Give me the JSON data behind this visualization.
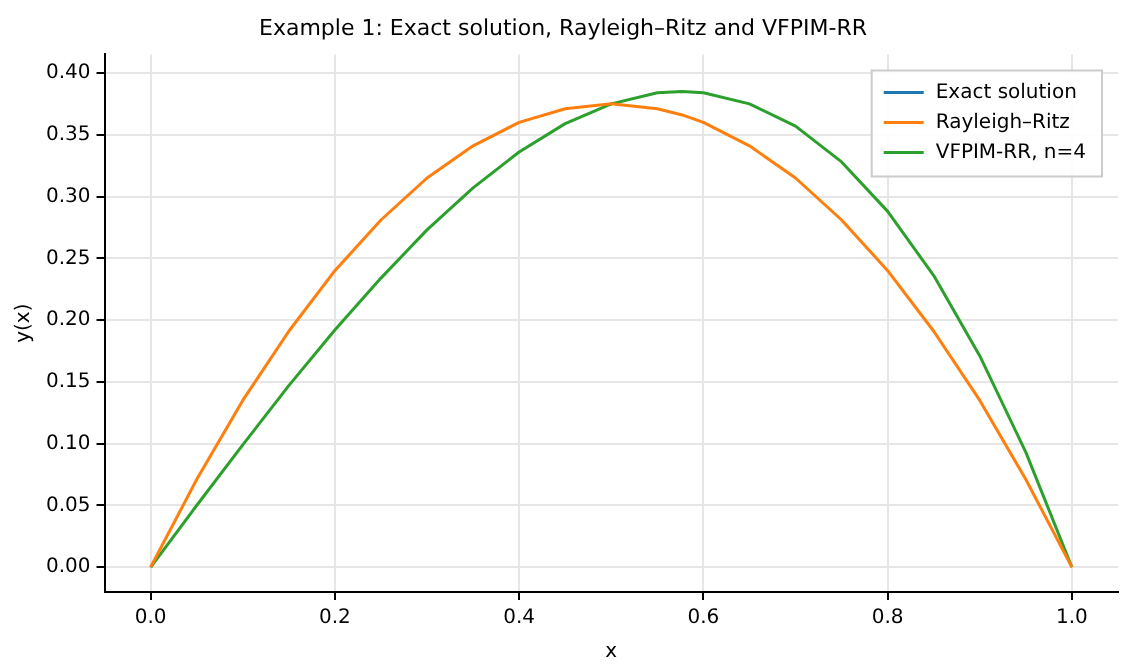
{
  "chart_data": {
    "type": "line",
    "title": "Example 1: Exact solution, Rayleigh–Ritz and VFPIM-RR",
    "xlabel": "x",
    "ylabel": "y(x)",
    "x": [
      0,
      0.05,
      0.1,
      0.15,
      0.2,
      0.25,
      0.3,
      0.35,
      0.4,
      0.45,
      0.5,
      0.55,
      0.577,
      0.6,
      0.65,
      0.7,
      0.75,
      0.8,
      0.85,
      0.9,
      0.95,
      1
    ],
    "series": [
      {
        "name": "Exact solution",
        "color": "#1f77b4",
        "values": [
          null,
          null,
          null,
          null,
          null,
          null,
          null,
          null,
          null,
          null,
          null,
          null,
          null,
          null,
          null,
          null,
          null,
          null,
          null,
          null,
          null,
          null
        ]
      },
      {
        "name": "Rayleigh–Ritz",
        "color": "#ff7f0e",
        "values": [
          0,
          0.071,
          0.135,
          0.191,
          0.24,
          0.281,
          0.315,
          0.341,
          0.36,
          0.371,
          0.375,
          0.371,
          0.366,
          0.36,
          0.341,
          0.315,
          0.281,
          0.24,
          0.191,
          0.135,
          0.071,
          0
        ]
      },
      {
        "name": "VFPIM-RR, n=4",
        "color": "#2ca02c",
        "values": [
          0,
          0.05,
          0.099,
          0.147,
          0.192,
          0.234,
          0.273,
          0.307,
          0.336,
          0.359,
          0.375,
          0.384,
          0.385,
          0.384,
          0.375,
          0.357,
          0.328,
          0.288,
          0.236,
          0.171,
          0.093,
          0
        ]
      }
    ],
    "xlim": [
      -0.05,
      1.05
    ],
    "ylim": [
      -0.02,
      0.415
    ],
    "xticks": [
      {
        "value": 0,
        "label": "0.0"
      },
      {
        "value": 0.2,
        "label": "0.2"
      },
      {
        "value": 0.4,
        "label": "0.4"
      },
      {
        "value": 0.6,
        "label": "0.6"
      },
      {
        "value": 0.8,
        "label": "0.8"
      },
      {
        "value": 1,
        "label": "1.0"
      }
    ],
    "yticks": [
      {
        "value": 0,
        "label": "0.00"
      },
      {
        "value": 0.05,
        "label": "0.05"
      },
      {
        "value": 0.1,
        "label": "0.10"
      },
      {
        "value": 0.15,
        "label": "0.15"
      },
      {
        "value": 0.2,
        "label": "0.20"
      },
      {
        "value": 0.25,
        "label": "0.25"
      },
      {
        "value": 0.3,
        "label": "0.30"
      },
      {
        "value": 0.35,
        "label": "0.35"
      },
      {
        "value": 0.4,
        "label": "0.40"
      }
    ],
    "grid": true,
    "legend": "top right",
    "line_style": "solid",
    "marker": "none"
  }
}
